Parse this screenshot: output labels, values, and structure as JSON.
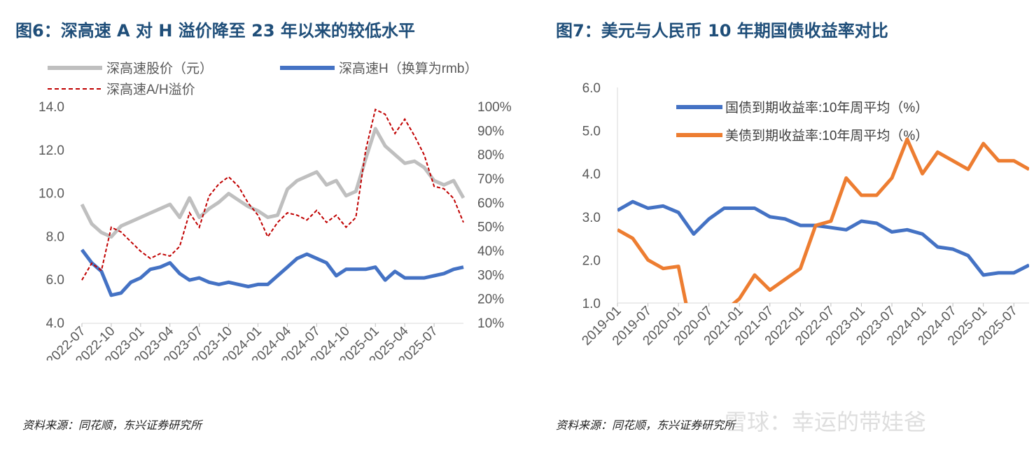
{
  "left": {
    "title": "图6：深高速 A 对 H 溢价降至 23 年以来的较低水平",
    "source": "资料来源：同花顺，东兴证券研究所"
  },
  "right": {
    "title": "图7：美元与人民币 10 年期国债收益率对比",
    "source": "资料来源：同花顺，东兴证券研究所"
  },
  "watermark": "雪球：幸运的带娃爸",
  "colors": {
    "gray": "#bfbfbf",
    "blue": "#4472c4",
    "red": "#c00000",
    "orange": "#ed7d31",
    "title": "#1f4e79"
  },
  "chart_data": [
    {
      "type": "line",
      "legend": [
        "深高速股价（元）",
        "深高速H（换算为rmb）",
        "深高速A/H溢价"
      ],
      "legend_placement": "top",
      "y_left_lim": [
        4.0,
        14.0
      ],
      "y_left_ticks": [
        "4.0",
        "6.0",
        "8.0",
        "10.0",
        "12.0",
        "14.0"
      ],
      "y_right_lim": [
        10,
        100
      ],
      "y_right_ticks": [
        "10%",
        "20%",
        "30%",
        "40%",
        "50%",
        "60%",
        "70%",
        "80%",
        "90%",
        "100%"
      ],
      "x_ticks": [
        "2022-07",
        "2022-10",
        "2023-01",
        "2023-04",
        "2023-07",
        "2023-10",
        "2024-01",
        "2024-04",
        "2024-07",
        "2024-10",
        "2025-01",
        "2025-04",
        "2025-07"
      ],
      "x_range": [
        "2022-07",
        "2025-10"
      ],
      "series": [
        {
          "name": "深高速股价（元）",
          "axis": "left",
          "color": "#bfbfbf",
          "x": [
            "2022-07",
            "2022-08",
            "2022-09",
            "2022-10",
            "2022-11",
            "2022-12",
            "2023-01",
            "2023-02",
            "2023-03",
            "2023-04",
            "2023-05",
            "2023-06",
            "2023-07",
            "2023-08",
            "2023-09",
            "2023-10",
            "2023-11",
            "2023-12",
            "2024-01",
            "2024-02",
            "2024-03",
            "2024-04",
            "2024-05",
            "2024-06",
            "2024-07",
            "2024-08",
            "2024-09",
            "2024-10",
            "2024-11",
            "2024-12",
            "2025-01",
            "2025-02",
            "2025-03",
            "2025-04",
            "2025-05",
            "2025-06",
            "2025-07",
            "2025-08",
            "2025-09",
            "2025-10"
          ],
          "values": [
            9.5,
            8.6,
            8.2,
            8.0,
            8.5,
            8.7,
            8.9,
            9.1,
            9.3,
            9.5,
            8.9,
            9.8,
            8.9,
            9.3,
            9.6,
            10.0,
            9.7,
            9.4,
            9.2,
            8.9,
            9.0,
            10.2,
            10.6,
            10.8,
            11.0,
            10.4,
            10.6,
            9.9,
            10.1,
            11.6,
            13.0,
            12.2,
            11.8,
            11.4,
            11.5,
            11.2,
            10.6,
            10.4,
            10.6,
            9.8
          ]
        },
        {
          "name": "深高速H（换算为rmb）",
          "axis": "left",
          "color": "#4472c4",
          "x": [
            "2022-07",
            "2022-08",
            "2022-09",
            "2022-10",
            "2022-11",
            "2022-12",
            "2023-01",
            "2023-02",
            "2023-03",
            "2023-04",
            "2023-05",
            "2023-06",
            "2023-07",
            "2023-08",
            "2023-09",
            "2023-10",
            "2023-11",
            "2023-12",
            "2024-01",
            "2024-02",
            "2024-03",
            "2024-04",
            "2024-05",
            "2024-06",
            "2024-07",
            "2024-08",
            "2024-09",
            "2024-10",
            "2024-11",
            "2024-12",
            "2025-01",
            "2025-02",
            "2025-03",
            "2025-04",
            "2025-05",
            "2025-06",
            "2025-07",
            "2025-08",
            "2025-09",
            "2025-10"
          ],
          "values": [
            7.4,
            6.8,
            6.4,
            5.3,
            5.4,
            5.9,
            6.1,
            6.5,
            6.6,
            6.8,
            6.3,
            6.0,
            6.1,
            5.9,
            5.8,
            5.9,
            5.8,
            5.7,
            5.8,
            5.8,
            6.2,
            6.6,
            7.0,
            7.2,
            7.0,
            6.8,
            6.2,
            6.5,
            6.5,
            6.5,
            6.6,
            6.0,
            6.4,
            6.1,
            6.1,
            6.1,
            6.2,
            6.3,
            6.5,
            6.6
          ]
        },
        {
          "name": "深高速A/H溢价",
          "axis": "right",
          "color": "#c00000",
          "dashed": true,
          "x": [
            "2022-07",
            "2022-08",
            "2022-09",
            "2022-10",
            "2022-11",
            "2022-12",
            "2023-01",
            "2023-02",
            "2023-03",
            "2023-04",
            "2023-05",
            "2023-06",
            "2023-07",
            "2023-08",
            "2023-09",
            "2023-10",
            "2023-11",
            "2023-12",
            "2024-01",
            "2024-02",
            "2024-03",
            "2024-04",
            "2024-05",
            "2024-06",
            "2024-07",
            "2024-08",
            "2024-09",
            "2024-10",
            "2024-11",
            "2024-12",
            "2025-01",
            "2025-02",
            "2025-03",
            "2025-04",
            "2025-05",
            "2025-06",
            "2025-07",
            "2025-08",
            "2025-09",
            "2025-10"
          ],
          "values": [
            28,
            35,
            32,
            50,
            48,
            44,
            40,
            37,
            39,
            38,
            42,
            56,
            50,
            63,
            68,
            71,
            67,
            60,
            55,
            46,
            52,
            56,
            55,
            53,
            57,
            52,
            55,
            50,
            54,
            82,
            99,
            97,
            89,
            95,
            88,
            80,
            67,
            66,
            62,
            52
          ]
        }
      ]
    },
    {
      "type": "line",
      "legend": [
        "国债到期收益率:10年周平均（%）",
        "美债到期收益率:10年周平均（%）"
      ],
      "legend_placement": "top",
      "ylim": [
        1.0,
        6.0
      ],
      "y_ticks": [
        "1.0",
        "2.0",
        "3.0",
        "4.0",
        "5.0",
        "6.0"
      ],
      "x_ticks": [
        "2019-01",
        "2019-07",
        "2020-01",
        "2020-07",
        "2021-01",
        "2021-07",
        "2022-01",
        "2022-07",
        "2023-01",
        "2023-07",
        "2024-01",
        "2024-07",
        "2025-01",
        "2025-07"
      ],
      "x_range": [
        "2019-01",
        "2025-10"
      ],
      "series": [
        {
          "name": "国债到期收益率:10年周平均（%）",
          "color": "#4472c4",
          "x": [
            "2019-01",
            "2019-04",
            "2019-07",
            "2019-10",
            "2020-01",
            "2020-04",
            "2020-07",
            "2020-10",
            "2021-01",
            "2021-04",
            "2021-07",
            "2021-10",
            "2022-01",
            "2022-04",
            "2022-07",
            "2022-10",
            "2023-01",
            "2023-04",
            "2023-07",
            "2023-10",
            "2024-01",
            "2024-04",
            "2024-07",
            "2024-10",
            "2025-01",
            "2025-04",
            "2025-07",
            "2025-10"
          ],
          "values": [
            3.15,
            3.35,
            3.2,
            3.25,
            3.1,
            2.6,
            2.95,
            3.2,
            3.2,
            3.2,
            3.0,
            2.95,
            2.8,
            2.8,
            2.75,
            2.7,
            2.9,
            2.85,
            2.65,
            2.7,
            2.6,
            2.3,
            2.25,
            2.1,
            1.65,
            1.7,
            1.7,
            1.88
          ]
        },
        {
          "name": "美债到期收益率:10年周平均（%）",
          "color": "#ed7d31",
          "x": [
            "2019-01",
            "2019-04",
            "2019-07",
            "2019-10",
            "2020-01",
            "2020-03",
            "2020-07",
            "2020-10",
            "2021-01",
            "2021-04",
            "2021-07",
            "2021-10",
            "2022-01",
            "2022-04",
            "2022-07",
            "2022-10",
            "2023-01",
            "2023-04",
            "2023-07",
            "2023-10",
            "2024-01",
            "2024-04",
            "2024-07",
            "2024-10",
            "2025-01",
            "2025-04",
            "2025-07",
            "2025-10"
          ],
          "values": [
            2.7,
            2.5,
            2.0,
            1.8,
            1.85,
            0.7,
            0.6,
            0.8,
            1.1,
            1.65,
            1.3,
            1.55,
            1.8,
            2.8,
            2.9,
            3.9,
            3.5,
            3.5,
            3.9,
            4.8,
            4.0,
            4.5,
            4.3,
            4.1,
            4.7,
            4.3,
            4.3,
            4.1
          ]
        }
      ]
    }
  ]
}
